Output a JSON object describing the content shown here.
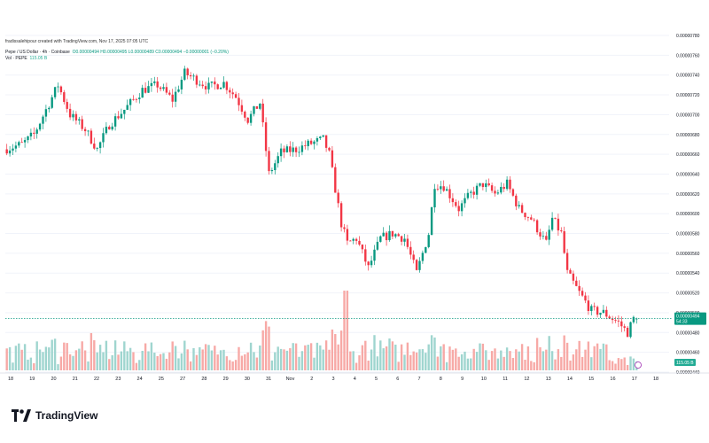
{
  "header": {
    "credit": "fradissalehipour created with TradingView.com, Nov 17, 2025 07:05 UTC",
    "symbol": "Pepe / US Dollar · 4h · Coinbase",
    "ohlc": "O0.00000494  H0.00000495  L0.00000489  C0.00000494  −0.00000001 (−0.20%)",
    "volume_label": "Vol · PEPE",
    "volume_value": "115.05 B"
  },
  "footer": {
    "brand": "TradingView"
  },
  "colors": {
    "up": "#089981",
    "down": "#f23645",
    "vol_up": "#9fd5cf",
    "vol_down": "#f7a9a6",
    "grid": "#f0f3fa"
  },
  "chart_data": {
    "type": "candlestick",
    "title": "Pepe / US Dollar · 4h · Coinbase",
    "y_axis": {
      "range": [
        4.4e-06,
        7.8e-06
      ],
      "ticks": [
        "0.00000780",
        "0.00000760",
        "0.00000740",
        "0.00000720",
        "0.00000700",
        "0.00000680",
        "0.00000660",
        "0.00000640",
        "0.00000620",
        "0.00000600",
        "0.00000580",
        "0.00000560",
        "0.00000540",
        "0.00000520",
        "0.00000500",
        "0.00000480",
        "0.00000460",
        "0.00000440"
      ],
      "last_price": "0.00000494",
      "countdown": "54:33",
      "volume_badge": "115.05 B"
    },
    "x_axis": {
      "ticks": [
        "18",
        "19",
        "20",
        "21",
        "22",
        "23",
        "24",
        "25",
        "27",
        "28",
        "29",
        "30",
        "31",
        "Nov",
        "2",
        "3",
        "4",
        "5",
        "6",
        "7",
        "8",
        "9",
        "10",
        "11",
        "12",
        "13",
        "14",
        "15",
        "16",
        "17",
        "18"
      ]
    },
    "anchors": [
      [
        0,
        6.65
      ],
      [
        6,
        6.7
      ],
      [
        10,
        6.8
      ],
      [
        14,
        7.05
      ],
      [
        18,
        7.3
      ],
      [
        22,
        7.0
      ],
      [
        27,
        6.85
      ],
      [
        31,
        6.65
      ],
      [
        35,
        6.9
      ],
      [
        40,
        7.05
      ],
      [
        46,
        7.25
      ],
      [
        51,
        7.3
      ],
      [
        56,
        7.15
      ],
      [
        60,
        7.42
      ],
      [
        64,
        7.35
      ],
      [
        68,
        7.28
      ],
      [
        73,
        7.32
      ],
      [
        77,
        7.18
      ],
      [
        81,
        6.95
      ],
      [
        85,
        7.12
      ],
      [
        88,
        6.4
      ],
      [
        92,
        6.62
      ],
      [
        97,
        6.65
      ],
      [
        101,
        6.7
      ],
      [
        106,
        6.75
      ],
      [
        108,
        6.6
      ],
      [
        112,
        5.9
      ],
      [
        114,
        5.7
      ],
      [
        117,
        5.75
      ],
      [
        121,
        5.45
      ],
      [
        125,
        5.75
      ],
      [
        129,
        5.8
      ],
      [
        133,
        5.75
      ],
      [
        137,
        5.4
      ],
      [
        141,
        5.8
      ],
      [
        143,
        6.3
      ],
      [
        146,
        6.28
      ],
      [
        151,
        6.05
      ],
      [
        155,
        6.2
      ],
      [
        159,
        6.3
      ],
      [
        163,
        6.2
      ],
      [
        167,
        6.3
      ],
      [
        171,
        6.05
      ],
      [
        175,
        5.95
      ],
      [
        180,
        5.7
      ],
      [
        182,
        5.95
      ],
      [
        185,
        5.8
      ],
      [
        187,
        5.4
      ],
      [
        191,
        5.2
      ],
      [
        195,
        5.02
      ],
      [
        199,
        5.0
      ],
      [
        204,
        4.9
      ],
      [
        207,
        4.8
      ],
      [
        209,
        4.94
      ]
    ],
    "series": [
      {
        "name": "Vol · PEPE",
        "type": "volume",
        "unit": "B"
      }
    ]
  }
}
